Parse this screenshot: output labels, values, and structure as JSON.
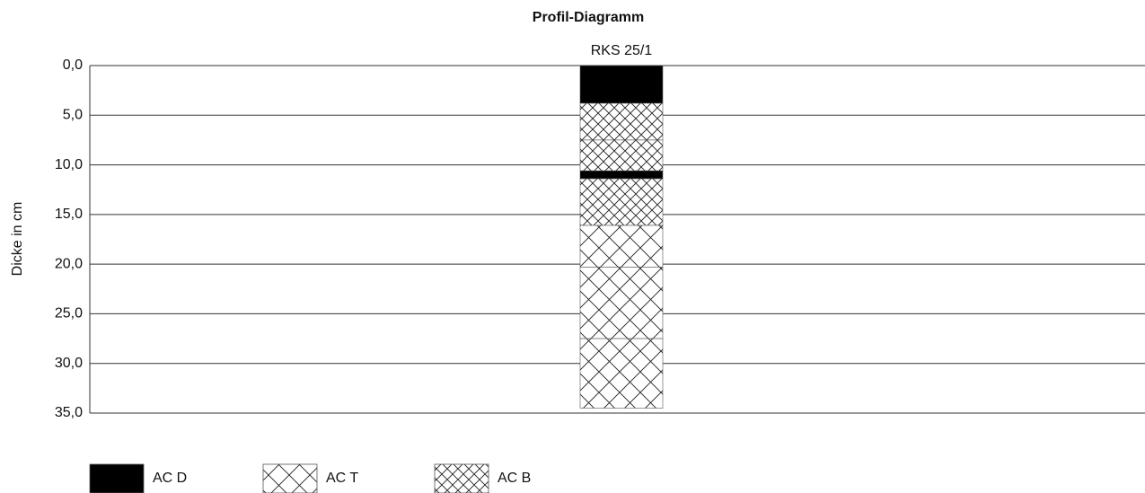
{
  "chart_data": {
    "type": "profile",
    "title": "Profil-Diagramm",
    "y_label": "Dicke in cm",
    "categories": [
      "RKS 25/1"
    ],
    "ylim": [
      0,
      35
    ],
    "inverted": true,
    "grid": true,
    "yticks": [
      {
        "value": 0,
        "label": "0,0"
      },
      {
        "value": 5,
        "label": "5,0"
      },
      {
        "value": 10,
        "label": "10,0"
      },
      {
        "value": 15,
        "label": "15,0"
      },
      {
        "value": 20,
        "label": "20,0"
      },
      {
        "value": 25,
        "label": "25,0"
      },
      {
        "value": 30,
        "label": "30,0"
      },
      {
        "value": 35,
        "label": "35,0"
      }
    ],
    "legend": [
      {
        "name": "AC D",
        "pattern": "solid"
      },
      {
        "name": "AC T",
        "pattern": "cross-large"
      },
      {
        "name": "AC B",
        "pattern": "cross-small"
      }
    ],
    "segments": [
      {
        "material": "AC D",
        "thickness": 3.8
      },
      {
        "material": "AC B",
        "thickness": 3.7
      },
      {
        "material": "AC B",
        "thickness": 3.1
      },
      {
        "material": "AC D",
        "thickness": 0.8
      },
      {
        "material": "AC B",
        "thickness": 4.7
      },
      {
        "material": "AC T",
        "thickness": 4.2
      },
      {
        "material": "AC T",
        "thickness": 7.2
      },
      {
        "material": "AC T",
        "thickness": 7.0
      }
    ]
  }
}
